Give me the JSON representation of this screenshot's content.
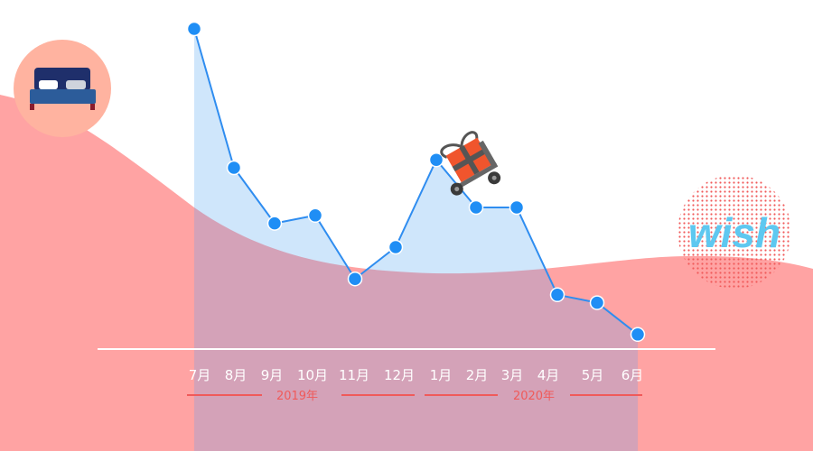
{
  "colors": {
    "background_wave": "#ffa3a3",
    "overlap_fill": "#d4a2b8",
    "line": "#2f8df0",
    "line_area": "#cfe6fb",
    "point": "#1f8ef5",
    "axis": "#ffffff",
    "year_line": "#f05a5a",
    "year_text": "#f05a5a",
    "brand_wish": "#5ec8f0"
  },
  "icons": {
    "bed": "bed-icon",
    "truck": "hand-truck-gift-icon",
    "logo": "wish-logo"
  },
  "logo": {
    "text": "wish"
  },
  "chart_data": {
    "type": "line",
    "categories": [
      "7月",
      "8月",
      "9月",
      "10月",
      "11月",
      "12月",
      "1月",
      "2月",
      "3月",
      "4月",
      "5月",
      "6月"
    ],
    "values": [
      95,
      60,
      46,
      48,
      32,
      40,
      62,
      50,
      50,
      28,
      26,
      18
    ],
    "ylim": [
      0,
      100
    ],
    "year_groups": [
      {
        "label": "2019年",
        "from": 0,
        "to": 5
      },
      {
        "label": "2020年",
        "from": 6,
        "to": 11
      }
    ],
    "title": "",
    "xlabel": "",
    "ylabel": "",
    "grid": false
  }
}
